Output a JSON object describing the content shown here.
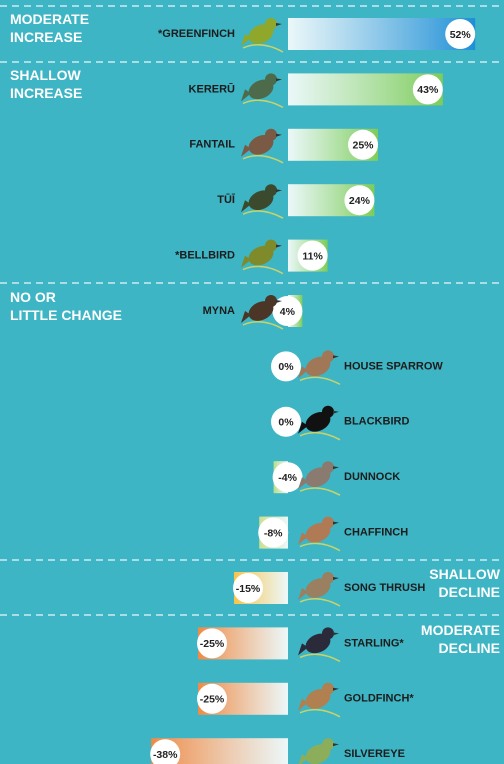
{
  "chart_data": {
    "type": "bar",
    "orientation": "horizontal",
    "categories": [
      "*GREENFINCH",
      "KERERŪ",
      "FANTAIL",
      "TŪĪ",
      "*BELLBIRD",
      "MYNA",
      "HOUSE SPARROW",
      "BLACKBIRD",
      "DUNNOCK",
      "CHAFFINCH",
      "SONG THRUSH",
      "STARLING*",
      "GOLDFINCH*",
      "SILVEREYE"
    ],
    "values": [
      52,
      43,
      25,
      24,
      11,
      4,
      0,
      0,
      -4,
      -8,
      -15,
      -25,
      -25,
      -38
    ],
    "value_labels": [
      "52%",
      "43%",
      "25%",
      "24%",
      "11%",
      "4%",
      "0%",
      "0%",
      "-4%",
      "-8%",
      "-15%",
      "-25%",
      "-25%",
      "-38%"
    ],
    "colors": [
      "#1e8fd6",
      "#7dcc5a",
      "#7dcc5a",
      "#7dcc5a",
      "#7dcc5a",
      "#7dcc5a",
      "#7dcc5a",
      "#7dcc5a",
      "#b9dd8a",
      "#c9e08e",
      "#f6c44c",
      "#ee8a45",
      "#ee8a45",
      "#ee8a45"
    ],
    "xlim": [
      -80,
      60
    ],
    "annotations": [
      "MODERATE INCREASE",
      "SHALLOW INCREASE",
      "NO OR LITTLE CHANGE",
      "SHALLOW DECLINE",
      "MODERATE DECLINE"
    ]
  }
}
